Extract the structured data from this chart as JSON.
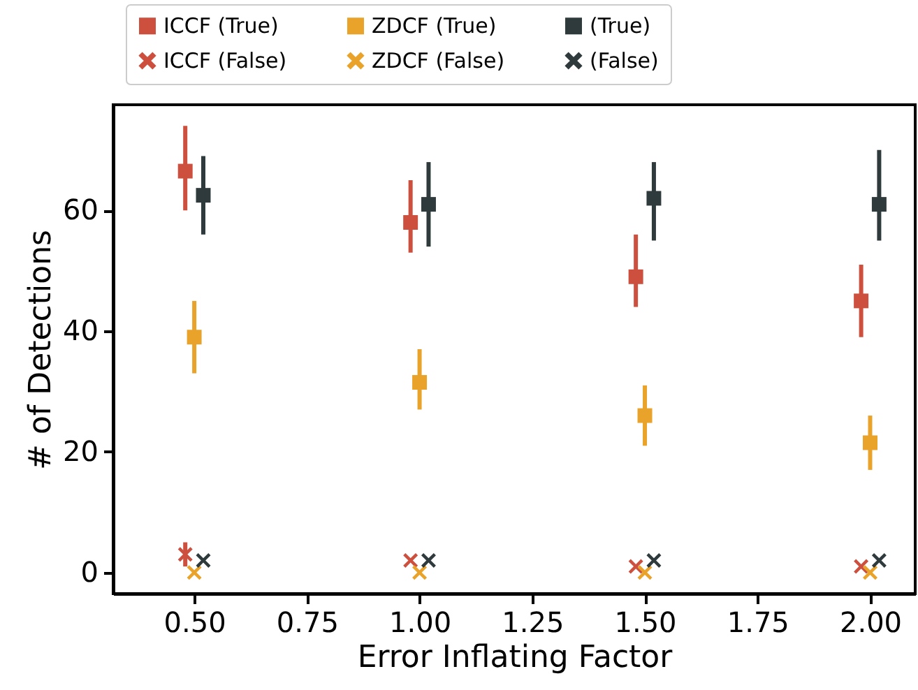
{
  "chart_data": {
    "type": "scatter",
    "xlabel": "Error Inflating Factor",
    "ylabel": "# of Detections",
    "legend": "top",
    "xlim": [
      0.32,
      2.1
    ],
    "xticks": [
      {
        "value": 0.5,
        "label": "0.50"
      },
      {
        "value": 0.75,
        "label": "0.75"
      },
      {
        "value": 1.0,
        "label": "1.00"
      },
      {
        "value": 1.25,
        "label": "1.25"
      },
      {
        "value": 1.5,
        "label": "1.50"
      },
      {
        "value": 1.75,
        "label": "1.75"
      },
      {
        "value": 2.0,
        "label": "2.00"
      }
    ],
    "ylim": [
      -3.5,
      77.5
    ],
    "yticks": [
      0,
      20,
      40,
      60
    ],
    "series": [
      {
        "name": "ICCF (True)",
        "color": "#cd4f3e",
        "marker": "square",
        "x": [
          0.48,
          0.98,
          1.48,
          1.98
        ],
        "values": [
          66.5,
          58,
          49,
          45
        ],
        "errors": [
          [
            60,
            74
          ],
          [
            53,
            65
          ],
          [
            44,
            56
          ],
          [
            39,
            51
          ]
        ]
      },
      {
        "name": "ZDCF (True)",
        "color": "#e9a32b",
        "marker": "square",
        "x": [
          0.5,
          1.0,
          1.5,
          2.0
        ],
        "values": [
          39,
          31.5,
          26,
          21.5
        ],
        "errors": [
          [
            33,
            45
          ],
          [
            27,
            37
          ],
          [
            21,
            31
          ],
          [
            17,
            26
          ]
        ]
      },
      {
        "name": "(True)",
        "color": "#2f3a3c",
        "marker": "square",
        "x": [
          0.52,
          1.02,
          1.52,
          2.02
        ],
        "values": [
          62.5,
          61,
          62,
          61
        ],
        "errors": [
          [
            56,
            69
          ],
          [
            54,
            68
          ],
          [
            55,
            68
          ],
          [
            55,
            70
          ]
        ]
      },
      {
        "name": "ICCF (False)",
        "color": "#cd4f3e",
        "marker": "cross",
        "x": [
          0.48,
          0.98,
          1.48,
          1.98
        ],
        "values": [
          3,
          2,
          1,
          1
        ],
        "errors": [
          [
            1,
            5
          ],
          null,
          null,
          null
        ]
      },
      {
        "name": "ZDCF (False)",
        "color": "#e9a32b",
        "marker": "cross",
        "x": [
          0.5,
          1.0,
          1.5,
          2.0
        ],
        "values": [
          0,
          0,
          0,
          0
        ]
      },
      {
        "name": "(False)",
        "color": "#2f3a3c",
        "marker": "cross",
        "x": [
          0.52,
          1.02,
          1.52,
          2.02
        ],
        "values": [
          2,
          2,
          2,
          2
        ]
      }
    ]
  }
}
